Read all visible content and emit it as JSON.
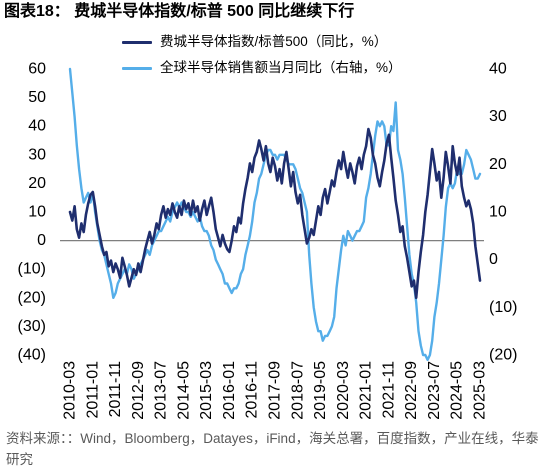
{
  "chart_data": {
    "type": "line",
    "title": "图表18： 费城半导体指数/标普 500 同比继续下行",
    "grid": false,
    "legend": "top",
    "x": [
      "2010-03",
      "2010-04",
      "2010-05",
      "2010-06",
      "2010-07",
      "2010-08",
      "2010-09",
      "2010-10",
      "2010-11",
      "2010-12",
      "2011-01",
      "2011-02",
      "2011-03",
      "2011-04",
      "2011-05",
      "2011-06",
      "2011-07",
      "2011-08",
      "2011-09",
      "2011-10",
      "2011-11",
      "2011-12",
      "2012-01",
      "2012-02",
      "2012-03",
      "2012-04",
      "2012-05",
      "2012-06",
      "2012-07",
      "2012-08",
      "2012-09",
      "2012-10",
      "2012-11",
      "2012-12",
      "2013-01",
      "2013-02",
      "2013-03",
      "2013-04",
      "2013-05",
      "2013-06",
      "2013-07",
      "2013-08",
      "2013-09",
      "2013-10",
      "2013-11",
      "2013-12",
      "2014-01",
      "2014-02",
      "2014-03",
      "2014-04",
      "2014-05",
      "2014-06",
      "2014-07",
      "2014-08",
      "2014-09",
      "2014-10",
      "2014-11",
      "2014-12",
      "2015-01",
      "2015-02",
      "2015-03",
      "2015-04",
      "2015-05",
      "2015-06",
      "2015-07",
      "2015-08",
      "2015-09",
      "2015-10",
      "2015-11",
      "2015-12",
      "2016-01",
      "2016-02",
      "2016-03",
      "2016-04",
      "2016-05",
      "2016-06",
      "2016-07",
      "2016-08",
      "2016-09",
      "2016-10",
      "2016-11",
      "2016-12",
      "2017-01",
      "2017-02",
      "2017-03",
      "2017-04",
      "2017-05",
      "2017-06",
      "2017-07",
      "2017-08",
      "2017-09",
      "2017-10",
      "2017-11",
      "2017-12",
      "2018-01",
      "2018-02",
      "2018-03",
      "2018-04",
      "2018-05",
      "2018-06",
      "2018-07",
      "2018-08",
      "2018-09",
      "2018-10",
      "2018-11",
      "2018-12",
      "2019-01",
      "2019-02",
      "2019-03",
      "2019-04",
      "2019-05",
      "2019-06",
      "2019-07",
      "2019-08",
      "2019-09",
      "2019-10",
      "2019-11",
      "2019-12",
      "2020-01",
      "2020-02",
      "2020-03",
      "2020-04",
      "2020-05",
      "2020-06",
      "2020-07",
      "2020-08",
      "2020-09",
      "2020-10",
      "2020-11",
      "2020-12",
      "2021-01",
      "2021-02",
      "2021-03",
      "2021-04",
      "2021-05",
      "2021-06",
      "2021-07",
      "2021-08",
      "2021-09",
      "2021-10",
      "2021-11",
      "2021-12",
      "2022-01",
      "2022-02",
      "2022-03",
      "2022-04",
      "2022-05",
      "2022-06",
      "2022-07",
      "2022-08",
      "2022-09",
      "2022-10",
      "2022-11",
      "2022-12",
      "2023-01",
      "2023-02",
      "2023-03",
      "2023-04",
      "2023-05",
      "2023-06",
      "2023-07",
      "2023-08",
      "2023-09",
      "2023-10",
      "2023-11",
      "2023-12",
      "2024-01",
      "2024-02",
      "2024-03",
      "2024-04",
      "2024-05",
      "2024-06",
      "2024-07",
      "2024-08",
      "2024-09",
      "2024-10",
      "2024-11",
      "2024-12",
      "2025-01",
      "2025-02",
      "2025-03"
    ],
    "x_ticks": [
      "2010-03",
      "2011-01",
      "2011-11",
      "2012-09",
      "2013-07",
      "2014-05",
      "2015-03",
      "2016-01",
      "2016-11",
      "2017-09",
      "2018-07",
      "2019-05",
      "2020-03",
      "2021-01",
      "2021-11",
      "2022-09",
      "2023-07",
      "2024-05",
      "2025-03"
    ],
    "y_left": {
      "range": [
        -40,
        60
      ],
      "ticks": [
        {
          "label": "60",
          "value": 60
        },
        {
          "label": "50",
          "value": 50
        },
        {
          "label": "40",
          "value": 40
        },
        {
          "label": "30",
          "value": 30
        },
        {
          "label": "20",
          "value": 20
        },
        {
          "label": "10",
          "value": 10
        },
        {
          "label": "0",
          "value": 0
        },
        {
          "label": "(10)",
          "value": -10
        },
        {
          "label": "(20)",
          "value": -20
        },
        {
          "label": "(30)",
          "value": -30
        },
        {
          "label": "(40)",
          "value": -40
        }
      ]
    },
    "y_right": {
      "range": [
        -20,
        40
      ],
      "ticks": [
        {
          "label": "40",
          "value": 40
        },
        {
          "label": "30",
          "value": 30
        },
        {
          "label": "20",
          "value": 20
        },
        {
          "label": "10",
          "value": 10
        },
        {
          "label": "0",
          "value": 0
        },
        {
          "label": "(10)",
          "value": -10
        },
        {
          "label": "(20)",
          "value": -20
        }
      ]
    },
    "series": [
      {
        "name": "费城半导体指数/标普500（同比，%）",
        "axis": "left",
        "color": "#1f2e6e",
        "values": [
          10,
          7,
          12,
          4,
          1,
          6,
          3,
          9,
          13,
          16,
          17,
          12,
          6,
          2,
          -2,
          -5,
          -4,
          -9,
          -7,
          -11,
          -8,
          -10,
          -13,
          -6,
          -9,
          -12,
          -16,
          -13,
          -10,
          -12,
          -8,
          -11,
          -7,
          -3,
          0,
          3,
          -1,
          2,
          6,
          4,
          9,
          12,
          8,
          11,
          9,
          13,
          10,
          8,
          12,
          9,
          14,
          11,
          13,
          9,
          14,
          10,
          12,
          7,
          11,
          14,
          9,
          12,
          15,
          10,
          4,
          1,
          -2,
          2,
          -1,
          -3,
          -4,
          0,
          5,
          3,
          8,
          6,
          13,
          18,
          22,
          27,
          24,
          29,
          31,
          35,
          32,
          28,
          33,
          27,
          24,
          29,
          26,
          21,
          25,
          20,
          27,
          31,
          25,
          19,
          24,
          17,
          13,
          16,
          9,
          4,
          -1,
          1,
          4,
          2,
          7,
          12,
          9,
          15,
          18,
          13,
          17,
          21,
          19,
          24,
          28,
          25,
          31,
          26,
          22,
          27,
          24,
          20,
          26,
          29,
          25,
          30,
          33,
          39,
          36,
          30,
          27,
          22,
          19,
          24,
          28,
          34,
          37,
          29,
          22,
          14,
          9,
          3,
          5,
          -2,
          -6,
          -11,
          -16,
          -14,
          -20,
          -11,
          -4,
          2,
          10,
          16,
          24,
          32,
          27,
          21,
          24,
          15,
          22,
          31,
          26,
          20,
          33,
          27,
          23,
          29,
          19,
          15,
          12,
          14,
          11,
          6,
          -2,
          -8,
          -14
        ]
      },
      {
        "name": "全球半导体销售额当月同比（右轴，%）",
        "axis": "right",
        "color": "#55aee9",
        "values": [
          40,
          35,
          30,
          24,
          19,
          15,
          12,
          13,
          14,
          12,
          14,
          10,
          7,
          4,
          2,
          1,
          -1,
          -3,
          -5,
          -8,
          -7,
          -5,
          -4,
          -3,
          -2,
          -3,
          -1,
          -2,
          -4,
          -3,
          -2,
          -1,
          0,
          1,
          2,
          1,
          3,
          4,
          5,
          6,
          6,
          7,
          8,
          9,
          8,
          10,
          11,
          12,
          11,
          12,
          11,
          10,
          10,
          9,
          10,
          9,
          8,
          9,
          7,
          6,
          6,
          5,
          3,
          2,
          0,
          -1,
          -2,
          -3,
          -5,
          -5,
          -6,
          -7,
          -6,
          -6,
          -5,
          -3,
          -2,
          1,
          3,
          5,
          8,
          12,
          14,
          17,
          18,
          20,
          22,
          23,
          23,
          22,
          22,
          21,
          22,
          22,
          22,
          21,
          20,
          20,
          20,
          19,
          17,
          15,
          14,
          12,
          10,
          1,
          -5,
          -10,
          -13,
          -15,
          -15,
          -17,
          -16,
          -16,
          -15,
          -14,
          -12,
          -6,
          -2,
          2,
          5,
          3,
          6,
          5,
          4,
          5,
          6,
          6,
          7,
          8,
          13,
          15,
          18,
          22,
          26,
          29,
          28,
          29,
          28,
          24,
          24,
          28,
          27,
          33,
          23,
          21,
          18,
          13,
          7,
          1,
          -3,
          -5,
          -9,
          -15,
          -18,
          -20,
          -20,
          -21,
          -20,
          -17,
          -12,
          -9,
          -5,
          0,
          5,
          11,
          15,
          16,
          15,
          16,
          19,
          18,
          18,
          20,
          23,
          22,
          21,
          19,
          17,
          17,
          18
        ]
      }
    ],
    "source": "资料来源：：Wind，Bloomberg，Datayes，iFind，海关总署，百度指数，产业在线，华泰研究"
  }
}
